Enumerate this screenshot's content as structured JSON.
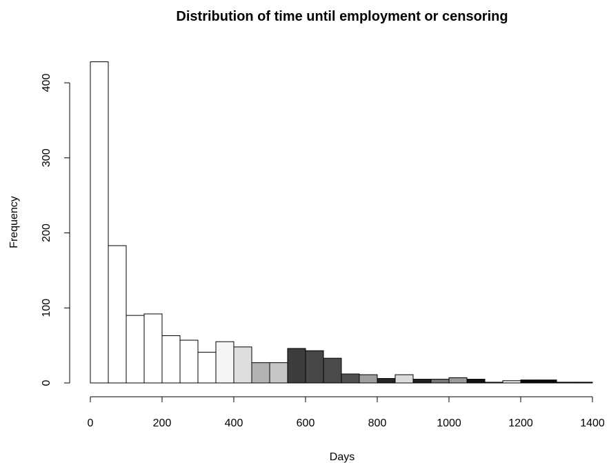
{
  "chart_data": {
    "type": "bar",
    "title": "Distribution of time until employment or censoring",
    "xlabel": "Days",
    "ylabel": "Frequency",
    "bin_width": 50,
    "xlim": [
      0,
      1400
    ],
    "ylim": [
      0,
      430
    ],
    "x_ticks": [
      0,
      200,
      400,
      600,
      800,
      1000,
      1200,
      1400
    ],
    "y_ticks": [
      0,
      100,
      200,
      300,
      400
    ],
    "grid": false,
    "bins": [
      {
        "start": 0,
        "end": 50,
        "value": 428,
        "color": "#ffffff"
      },
      {
        "start": 50,
        "end": 100,
        "value": 183,
        "color": "#ffffff"
      },
      {
        "start": 100,
        "end": 150,
        "value": 90,
        "color": "#ffffff"
      },
      {
        "start": 150,
        "end": 200,
        "value": 92,
        "color": "#ffffff"
      },
      {
        "start": 200,
        "end": 250,
        "value": 63,
        "color": "#ffffff"
      },
      {
        "start": 250,
        "end": 300,
        "value": 57,
        "color": "#ffffff"
      },
      {
        "start": 300,
        "end": 350,
        "value": 41,
        "color": "#ffffff"
      },
      {
        "start": 350,
        "end": 400,
        "value": 55,
        "color": "#f5f5f5"
      },
      {
        "start": 400,
        "end": 450,
        "value": 48,
        "color": "#dedede"
      },
      {
        "start": 450,
        "end": 500,
        "value": 27,
        "color": "#b3b3b3"
      },
      {
        "start": 500,
        "end": 550,
        "value": 27,
        "color": "#c6c6c6"
      },
      {
        "start": 550,
        "end": 600,
        "value": 46,
        "color": "#3d3d3d"
      },
      {
        "start": 600,
        "end": 650,
        "value": 43,
        "color": "#474747"
      },
      {
        "start": 650,
        "end": 700,
        "value": 33,
        "color": "#4a4a4a"
      },
      {
        "start": 700,
        "end": 750,
        "value": 12,
        "color": "#4f4f4f"
      },
      {
        "start": 750,
        "end": 800,
        "value": 11,
        "color": "#9e9e9e"
      },
      {
        "start": 800,
        "end": 850,
        "value": 6,
        "color": "#262626"
      },
      {
        "start": 850,
        "end": 900,
        "value": 11,
        "color": "#dcdcdc"
      },
      {
        "start": 900,
        "end": 950,
        "value": 5,
        "color": "#222222"
      },
      {
        "start": 950,
        "end": 1000,
        "value": 5,
        "color": "#777777"
      },
      {
        "start": 1000,
        "end": 1050,
        "value": 7,
        "color": "#9a9a9a"
      },
      {
        "start": 1050,
        "end": 1100,
        "value": 5,
        "color": "#111111"
      },
      {
        "start": 1100,
        "end": 1150,
        "value": 1,
        "color": "#ffffff"
      },
      {
        "start": 1150,
        "end": 1200,
        "value": 3,
        "color": "#eeeeee"
      },
      {
        "start": 1200,
        "end": 1250,
        "value": 4,
        "color": "#0a0a0a"
      },
      {
        "start": 1250,
        "end": 1300,
        "value": 4,
        "color": "#0a0a0a"
      },
      {
        "start": 1300,
        "end": 1350,
        "value": 1,
        "color": "#1a1a1a"
      },
      {
        "start": 1350,
        "end": 1400,
        "value": 1,
        "color": "#1a1a1a"
      }
    ]
  }
}
